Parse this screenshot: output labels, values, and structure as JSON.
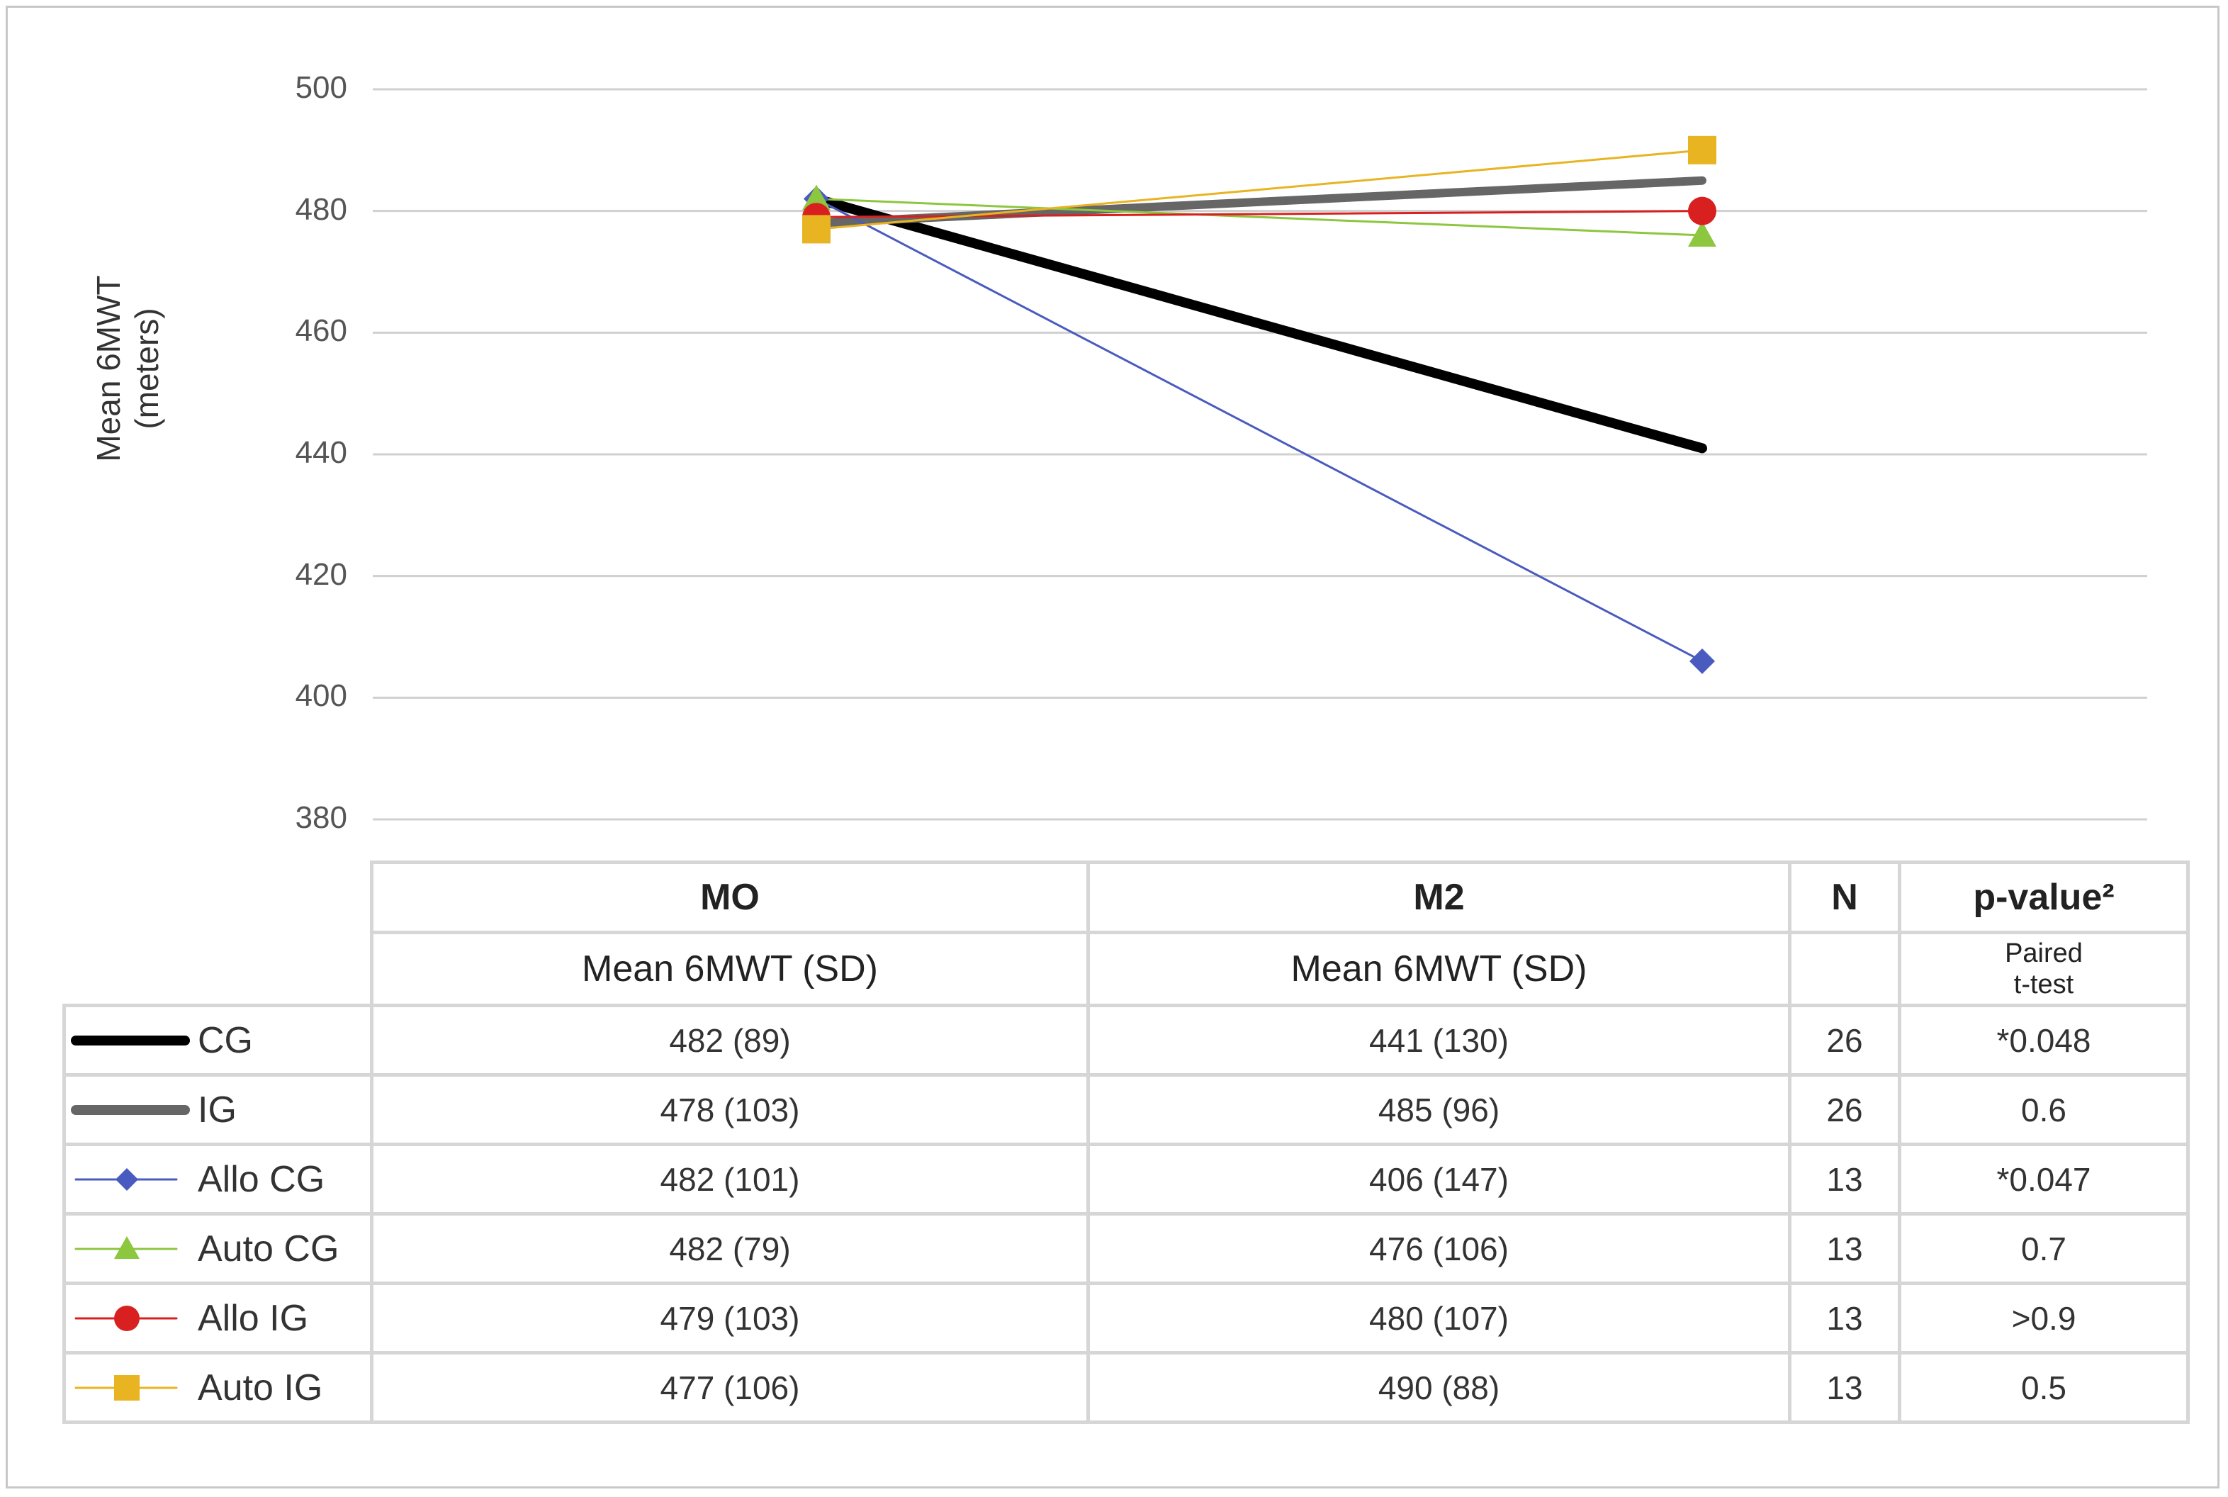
{
  "chart_data": {
    "type": "line",
    "title": "",
    "xlabel": "",
    "ylabel": "Mean 6MWT\n(meters)",
    "ylabel_lines": [
      "Mean 6MWT",
      "(meters)"
    ],
    "categories": [
      "MO",
      "M2"
    ],
    "ylim": [
      380,
      500
    ],
    "yticks": [
      500,
      480,
      460,
      440,
      420,
      400,
      380
    ],
    "grid": true,
    "series": [
      {
        "name": "CG",
        "values": [
          482,
          441
        ],
        "color": "#000000",
        "marker": "none",
        "weight": "heavy"
      },
      {
        "name": "IG",
        "values": [
          478,
          485
        ],
        "color": "#666666",
        "marker": "none",
        "weight": "heavy"
      },
      {
        "name": "Allo CG",
        "values": [
          482,
          406
        ],
        "color": "#4a5bbf",
        "marker": "diamond",
        "weight": "thin"
      },
      {
        "name": "Auto CG",
        "values": [
          482,
          476
        ],
        "color": "#8dc63f",
        "marker": "triangle",
        "weight": "thin"
      },
      {
        "name": "Allo IG",
        "values": [
          479,
          480
        ],
        "color": "#d92020",
        "marker": "circle",
        "weight": "thin"
      },
      {
        "name": "Auto IG",
        "values": [
          477,
          490
        ],
        "color": "#e8b422",
        "marker": "square",
        "weight": "thin"
      }
    ]
  },
  "table": {
    "col_headers": [
      "MO",
      "M2",
      "N",
      "p-value²"
    ],
    "sub_headers": [
      "Mean 6MWT (SD)",
      "Mean 6MWT (SD)",
      "",
      "Paired\nt-test"
    ],
    "sub_header_pvalue_lines": [
      "Paired",
      "t-test"
    ],
    "rows": [
      {
        "label": "CG",
        "mo": "482 (89)",
        "m2": "441 (130)",
        "n": "26",
        "p": "*0.048"
      },
      {
        "label": "IG",
        "mo": "478 (103)",
        "m2": "485 (96)",
        "n": "26",
        "p": "0.6"
      },
      {
        "label": "Allo CG",
        "mo": "482 (101)",
        "m2": "406 (147)",
        "n": "13",
        "p": "*0.047"
      },
      {
        "label": "Auto CG",
        "mo": "482 (79)",
        "m2": "476 (106)",
        "n": "13",
        "p": "0.7"
      },
      {
        "label": "Allo IG",
        "mo": "479 (103)",
        "m2": "480 (107)",
        "n": "13",
        "p": ">0.9"
      },
      {
        "label": "Auto IG",
        "mo": "477 (106)",
        "m2": "490 (88)",
        "n": "13",
        "p": "0.5"
      }
    ]
  }
}
